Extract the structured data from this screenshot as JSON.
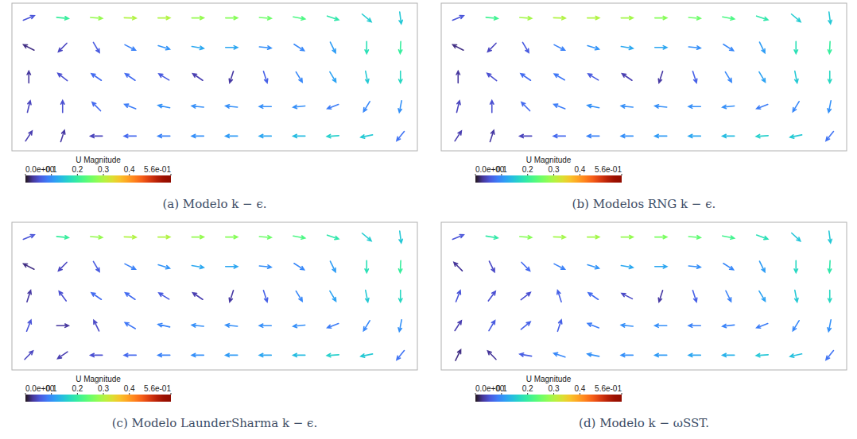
{
  "chart_data": [
    {
      "type": "quiver",
      "title": "(a) Modelo k − ϵ.",
      "xlim": [
        0,
        8.4
      ],
      "ylim": [
        0,
        3
      ],
      "tick_labels": false,
      "x": [
        0.35,
        1.05,
        1.75,
        2.45,
        3.15,
        3.85,
        4.55,
        5.25,
        5.95,
        6.65,
        7.35,
        8.05
      ],
      "y": [
        0.3,
        0.9,
        1.5,
        2.1,
        2.7
      ],
      "u": [
        [
          0.02,
          0.01,
          -0.04,
          -0.07,
          -0.09,
          -0.1,
          -0.11,
          -0.12,
          -0.14,
          -0.16,
          -0.15,
          -0.05
        ],
        [
          0.01,
          0.0,
          -0.05,
          -0.08,
          -0.1,
          -0.1,
          -0.1,
          -0.1,
          -0.1,
          -0.08,
          -0.05,
          -0.02
        ],
        [
          0.0,
          -0.04,
          -0.06,
          -0.06,
          -0.05,
          -0.03,
          -0.01,
          0.02,
          0.05,
          0.06,
          0.03,
          0.0
        ],
        [
          -0.02,
          -0.03,
          0.03,
          0.08,
          0.1,
          0.12,
          0.12,
          0.1,
          0.08,
          0.05,
          0.0,
          -0.01
        ],
        [
          0.05,
          0.2,
          0.28,
          0.3,
          0.3,
          0.28,
          0.27,
          0.25,
          0.22,
          0.18,
          0.12,
          0.02
        ]
      ],
      "v": [
        [
          0.03,
          0.03,
          0.0,
          0.0,
          0.0,
          0.0,
          0.0,
          0.0,
          0.0,
          -0.01,
          -0.03,
          -0.06
        ],
        [
          0.04,
          0.05,
          0.05,
          0.03,
          0.02,
          0.01,
          0.01,
          0.0,
          -0.01,
          -0.03,
          -0.08,
          -0.1
        ],
        [
          0.03,
          0.03,
          0.04,
          0.04,
          0.03,
          0.02,
          -0.03,
          -0.06,
          -0.08,
          -0.1,
          -0.15,
          -0.17
        ],
        [
          0.01,
          -0.03,
          -0.05,
          -0.04,
          -0.03,
          -0.02,
          0.0,
          -0.01,
          -0.05,
          -0.1,
          -0.18,
          -0.2
        ],
        [
          0.02,
          -0.02,
          -0.02,
          -0.01,
          0.0,
          0.0,
          0.0,
          -0.02,
          -0.04,
          -0.06,
          -0.1,
          -0.15
        ]
      ],
      "colorbar": {
        "title": "U Magnitude",
        "range": [
          0,
          0.56
        ],
        "ticks": [
          {
            "value": 0,
            "label": "0.0e+00"
          },
          0.1,
          0.2,
          0.3,
          0.4,
          {
            "value": 0.56,
            "label": "5.6e-01"
          }
        ]
      }
    },
    {
      "type": "quiver",
      "title": "(b) Modelos RNG k − ϵ.",
      "xlim": [
        0,
        8.4
      ],
      "ylim": [
        0,
        3
      ],
      "tick_labels": false,
      "x": [
        0.35,
        1.05,
        1.75,
        2.45,
        3.15,
        3.85,
        4.55,
        5.25,
        5.95,
        6.65,
        7.35,
        8.05
      ],
      "y": [
        0.3,
        0.9,
        1.5,
        2.1,
        2.7
      ],
      "u": [
        [
          0.02,
          0.01,
          -0.04,
          -0.07,
          -0.09,
          -0.1,
          -0.11,
          -0.12,
          -0.14,
          -0.16,
          -0.15,
          -0.05
        ],
        [
          0.01,
          0.0,
          -0.05,
          -0.08,
          -0.1,
          -0.1,
          -0.1,
          -0.1,
          -0.1,
          -0.08,
          -0.05,
          -0.02
        ],
        [
          0.0,
          -0.04,
          -0.06,
          -0.07,
          -0.05,
          -0.03,
          -0.01,
          0.02,
          0.05,
          0.06,
          0.03,
          0.0
        ],
        [
          -0.02,
          -0.03,
          0.03,
          0.08,
          0.1,
          0.12,
          0.12,
          0.1,
          0.08,
          0.05,
          0.0,
          -0.01
        ],
        [
          0.05,
          0.21,
          0.29,
          0.3,
          0.3,
          0.29,
          0.27,
          0.25,
          0.22,
          0.18,
          0.12,
          0.02
        ]
      ],
      "v": [
        [
          0.03,
          0.03,
          0.0,
          0.0,
          0.0,
          0.0,
          0.0,
          0.0,
          0.0,
          -0.01,
          -0.03,
          -0.06
        ],
        [
          0.04,
          0.05,
          0.05,
          0.03,
          0.02,
          0.01,
          0.01,
          0.0,
          -0.01,
          -0.03,
          -0.08,
          -0.1
        ],
        [
          0.03,
          0.03,
          0.04,
          0.04,
          0.03,
          0.02,
          -0.03,
          -0.06,
          -0.08,
          -0.1,
          -0.15,
          -0.17
        ],
        [
          0.01,
          -0.03,
          -0.05,
          -0.04,
          -0.03,
          -0.02,
          0.0,
          -0.01,
          -0.05,
          -0.1,
          -0.18,
          -0.2
        ],
        [
          0.02,
          -0.02,
          -0.02,
          -0.01,
          0.0,
          0.0,
          0.0,
          -0.02,
          -0.04,
          -0.06,
          -0.1,
          -0.15
        ]
      ],
      "colorbar": {
        "title": "U Magnitude",
        "range": [
          0,
          0.56
        ],
        "ticks": [
          {
            "value": 0,
            "label": "0.0e+00"
          },
          0.1,
          0.2,
          0.3,
          0.4,
          {
            "value": 0.56,
            "label": "5.6e-01"
          }
        ]
      }
    },
    {
      "type": "quiver",
      "title": "(c) Modelo LaunderSharma k − ϵ.",
      "xlim": [
        0,
        8.4
      ],
      "ylim": [
        0,
        3
      ],
      "tick_labels": false,
      "x": [
        0.35,
        1.05,
        1.75,
        2.45,
        3.15,
        3.85,
        4.55,
        5.25,
        5.95,
        6.65,
        7.35,
        8.05
      ],
      "y": [
        0.3,
        0.9,
        1.5,
        2.1,
        2.7
      ],
      "u": [
        [
          0.03,
          -0.03,
          -0.05,
          -0.07,
          -0.09,
          -0.1,
          -0.11,
          -0.12,
          -0.14,
          -0.16,
          -0.15,
          -0.05
        ],
        [
          0.02,
          0.03,
          -0.02,
          -0.07,
          -0.09,
          -0.1,
          -0.1,
          -0.1,
          -0.1,
          -0.08,
          -0.05,
          -0.02
        ],
        [
          0.01,
          -0.03,
          -0.06,
          -0.06,
          -0.05,
          -0.03,
          -0.01,
          0.02,
          0.05,
          0.06,
          0.03,
          0.0
        ],
        [
          -0.02,
          -0.03,
          0.03,
          0.08,
          0.1,
          0.12,
          0.12,
          0.1,
          0.08,
          0.05,
          0.0,
          -0.01
        ],
        [
          0.05,
          0.2,
          0.28,
          0.3,
          0.3,
          0.28,
          0.27,
          0.25,
          0.22,
          0.18,
          0.12,
          0.02
        ]
      ],
      "v": [
        [
          0.03,
          -0.02,
          0.0,
          0.0,
          0.0,
          0.0,
          0.0,
          0.0,
          0.0,
          -0.01,
          -0.03,
          -0.06
        ],
        [
          0.05,
          0.0,
          0.04,
          0.04,
          0.02,
          0.01,
          0.01,
          0.0,
          -0.01,
          -0.03,
          -0.08,
          -0.1
        ],
        [
          0.03,
          0.04,
          0.04,
          0.04,
          0.03,
          0.02,
          -0.03,
          -0.06,
          -0.08,
          -0.1,
          -0.15,
          -0.17
        ],
        [
          0.01,
          -0.03,
          -0.05,
          -0.04,
          -0.03,
          -0.02,
          0.0,
          -0.01,
          -0.05,
          -0.1,
          -0.18,
          -0.2
        ],
        [
          0.02,
          -0.02,
          -0.02,
          -0.01,
          0.0,
          0.0,
          0.0,
          -0.02,
          -0.04,
          -0.06,
          -0.1,
          -0.15
        ]
      ],
      "colorbar": {
        "title": "U Magnitude",
        "range": [
          0,
          0.56
        ],
        "ticks": [
          {
            "value": 0,
            "label": "0.0e+00"
          },
          0.1,
          0.2,
          0.3,
          0.4,
          {
            "value": 0.56,
            "label": "5.6e-01"
          }
        ]
      }
    },
    {
      "type": "quiver",
      "title": "(d) Modelo k − ωSST.",
      "xlim": [
        0,
        8.4
      ],
      "ylim": [
        0,
        3
      ],
      "tick_labels": false,
      "x": [
        0.35,
        1.05,
        1.75,
        2.45,
        3.15,
        3.85,
        4.55,
        5.25,
        5.95,
        6.65,
        7.35,
        8.05
      ],
      "y": [
        0.3,
        0.9,
        1.5,
        2.1,
        2.7
      ],
      "u": [
        [
          0.01,
          -0.02,
          -0.06,
          -0.09,
          -0.1,
          -0.1,
          -0.11,
          -0.12,
          -0.13,
          -0.15,
          -0.14,
          -0.05
        ],
        [
          0.02,
          0.03,
          0.05,
          0.02,
          -0.08,
          -0.1,
          -0.1,
          -0.09,
          -0.09,
          -0.08,
          -0.05,
          -0.02
        ],
        [
          0.02,
          0.03,
          0.04,
          -0.02,
          -0.06,
          -0.04,
          -0.01,
          0.02,
          0.04,
          0.06,
          0.03,
          0.0
        ],
        [
          -0.02,
          0.02,
          0.05,
          0.08,
          0.1,
          0.12,
          0.12,
          0.1,
          0.08,
          0.05,
          0.0,
          -0.01
        ],
        [
          0.05,
          0.19,
          0.27,
          0.29,
          0.29,
          0.28,
          0.26,
          0.24,
          0.21,
          0.17,
          0.11,
          0.02
        ]
      ],
      "v": [
        [
          0.02,
          0.02,
          0.01,
          0.03,
          0.02,
          0.0,
          0.0,
          0.0,
          0.0,
          -0.01,
          -0.03,
          -0.06
        ],
        [
          0.03,
          0.05,
          0.04,
          0.06,
          0.03,
          0.01,
          0.0,
          0.0,
          -0.01,
          -0.03,
          -0.08,
          -0.1
        ],
        [
          0.05,
          0.04,
          0.03,
          0.06,
          0.04,
          0.02,
          -0.03,
          -0.06,
          -0.08,
          -0.1,
          -0.15,
          -0.17
        ],
        [
          0.02,
          -0.04,
          -0.05,
          -0.04,
          -0.03,
          -0.02,
          0.0,
          -0.01,
          -0.05,
          -0.1,
          -0.17,
          -0.19
        ],
        [
          0.02,
          -0.03,
          -0.02,
          -0.01,
          0.0,
          0.0,
          0.0,
          -0.02,
          -0.04,
          -0.06,
          -0.1,
          -0.15
        ]
      ],
      "colorbar": {
        "title": "U Magnitude",
        "range": [
          0,
          0.56
        ],
        "ticks": [
          {
            "value": 0,
            "label": "0.0e+00"
          },
          0.1,
          0.2,
          0.3,
          0.4,
          {
            "value": 0.56,
            "label": "5.6e-01"
          }
        ]
      }
    }
  ]
}
